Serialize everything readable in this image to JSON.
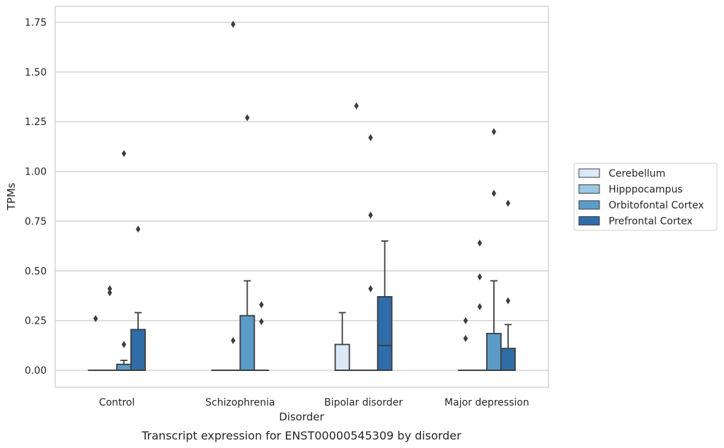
{
  "caption": "Transcript expression for ENST00000545309 by disorder",
  "chart_data": {
    "type": "box",
    "title": "",
    "xlabel": "Disorder",
    "ylabel": "TPMs",
    "ylim": [
      -0.085,
      1.83
    ],
    "yticks": [
      0.0,
      0.25,
      0.5,
      0.75,
      1.0,
      1.25,
      1.5,
      1.75
    ],
    "ytick_labels": [
      "0.00",
      "0.25",
      "0.50",
      "0.75",
      "1.00",
      "1.25",
      "1.50",
      "1.75"
    ],
    "grid": "horizontal",
    "legend_position": "right",
    "categories": [
      "Control",
      "Schizophrenia",
      "Bipolar disorder",
      "Major depression"
    ],
    "series": [
      {
        "name": "Cerebellum",
        "color": "#dbe9f6",
        "boxes": [
          {
            "category": "Control",
            "q1": 0,
            "median": 0,
            "q3": 0,
            "whisker_low": 0,
            "whisker_high": 0,
            "outliers": [
              0.26
            ]
          },
          {
            "category": "Schizophrenia",
            "q1": 0,
            "median": 0,
            "q3": 0,
            "whisker_low": 0,
            "whisker_high": 0,
            "outliers": []
          },
          {
            "category": "Bipolar disorder",
            "q1": 0,
            "median": 0,
            "q3": 0.13,
            "whisker_low": 0,
            "whisker_high": 0.29,
            "outliers": []
          },
          {
            "category": "Major depression",
            "q1": 0,
            "median": 0,
            "q3": 0,
            "whisker_low": 0,
            "whisker_high": 0,
            "outliers": [
              0.16,
              0.25
            ]
          }
        ]
      },
      {
        "name": "Hipppocampus",
        "color": "#9ac8e0",
        "boxes": [
          {
            "category": "Control",
            "q1": 0,
            "median": 0,
            "q3": 0,
            "whisker_low": 0,
            "whisker_high": 0,
            "outliers": [
              0.39,
              0.41
            ]
          },
          {
            "category": "Schizophrenia",
            "q1": 0,
            "median": 0,
            "q3": 0,
            "whisker_low": 0,
            "whisker_high": 0,
            "outliers": [
              0.15,
              1.74
            ]
          },
          {
            "category": "Bipolar disorder",
            "q1": 0,
            "median": 0,
            "q3": 0,
            "whisker_low": 0,
            "whisker_high": 0,
            "outliers": [
              1.33
            ]
          },
          {
            "category": "Major depression",
            "q1": 0,
            "median": 0,
            "q3": 0,
            "whisker_low": 0,
            "whisker_high": 0,
            "outliers": [
              0.32,
              0.47,
              0.64
            ]
          }
        ]
      },
      {
        "name": "Orbitofontal Cortex",
        "color": "#5a9bc8",
        "boxes": [
          {
            "category": "Control",
            "q1": 0,
            "median": 0,
            "q3": 0.03,
            "whisker_low": 0,
            "whisker_high": 0.05,
            "outliers": [
              0.13,
              1.09
            ]
          },
          {
            "category": "Schizophrenia",
            "q1": 0,
            "median": 0,
            "q3": 0.275,
            "whisker_low": 0,
            "whisker_high": 0.45,
            "outliers": [
              1.27
            ]
          },
          {
            "category": "Bipolar disorder",
            "q1": 0,
            "median": 0,
            "q3": 0,
            "whisker_low": 0,
            "whisker_high": 0,
            "outliers": [
              0.41,
              0.78,
              1.17
            ]
          },
          {
            "category": "Major depression",
            "q1": 0,
            "median": 0,
            "q3": 0.185,
            "whisker_low": 0,
            "whisker_high": 0.45,
            "outliers": [
              0.89,
              1.2
            ]
          }
        ]
      },
      {
        "name": "Prefrontal Cortex",
        "color": "#2f6ca8",
        "boxes": [
          {
            "category": "Control",
            "q1": 0,
            "median": 0,
            "q3": 0.205,
            "whisker_low": 0,
            "whisker_high": 0.29,
            "outliers": [
              0.71
            ]
          },
          {
            "category": "Schizophrenia",
            "q1": 0,
            "median": 0,
            "q3": 0,
            "whisker_low": 0,
            "whisker_high": 0,
            "outliers": [
              0.245,
              0.33
            ]
          },
          {
            "category": "Bipolar disorder",
            "q1": 0,
            "median": 0.125,
            "q3": 0.37,
            "whisker_low": 0,
            "whisker_high": 0.65,
            "outliers": []
          },
          {
            "category": "Major depression",
            "q1": 0,
            "median": 0,
            "q3": 0.11,
            "whisker_low": 0,
            "whisker_high": 0.23,
            "outliers": [
              0.35,
              0.84
            ]
          }
        ]
      }
    ]
  }
}
